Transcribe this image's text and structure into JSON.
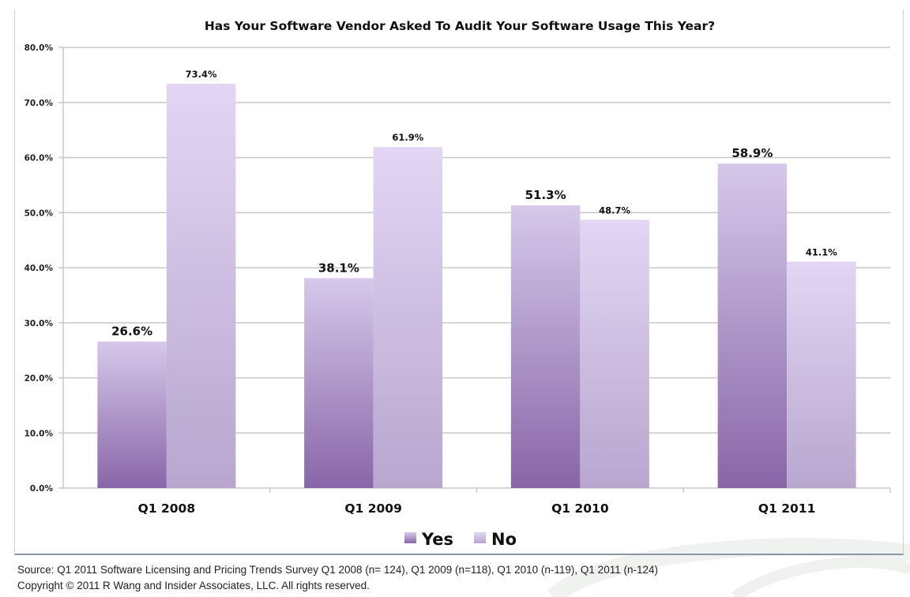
{
  "chart_data": {
    "type": "bar",
    "title": "Has Your Software Vendor Asked To Audit Your Software Usage This Year?",
    "xlabel": "",
    "ylabel": "",
    "categories": [
      "Q1 2008",
      "Q1 2009",
      "Q1 2010",
      "Q1 2011"
    ],
    "series": [
      {
        "name": "Yes",
        "values": [
          26.6,
          38.1,
          51.3,
          58.9
        ],
        "labels": [
          "26.6%",
          "38.1%",
          "51.3%",
          "58.9%"
        ]
      },
      {
        "name": "No",
        "values": [
          73.4,
          61.9,
          48.7,
          41.1
        ],
        "labels": [
          "73.4%",
          "61.9%",
          "48.7%",
          "41.1%"
        ]
      }
    ],
    "ylim": [
      0,
      80
    ],
    "yticks": [
      0,
      10,
      20,
      30,
      40,
      50,
      60,
      70,
      80
    ],
    "ytick_labels": [
      "0.0%",
      "10.0%",
      "20.0%",
      "30.0%",
      "40.0%",
      "50.0%",
      "60.0%",
      "70.0%",
      "80.0%"
    ],
    "grid": true,
    "legend_position": "bottom",
    "colors": {
      "yes_top": "#d6c8ea",
      "yes_bottom": "#8866a8",
      "no_top": "#e2d6f4",
      "no_bottom": "#b8a6ce",
      "grid": "#c8c8c8"
    }
  },
  "footer": {
    "source_line": "Source: Q1 2011 Software Licensing and Pricing Trends Survey Q1 2008 (n= 124), Q1 2009 (n=118), Q1 2010 (n-119), Q1 2011 (n-124)",
    "copyright_line": "Copyright © 2011 R Wang and Insider Associates, LLC. All rights reserved."
  }
}
